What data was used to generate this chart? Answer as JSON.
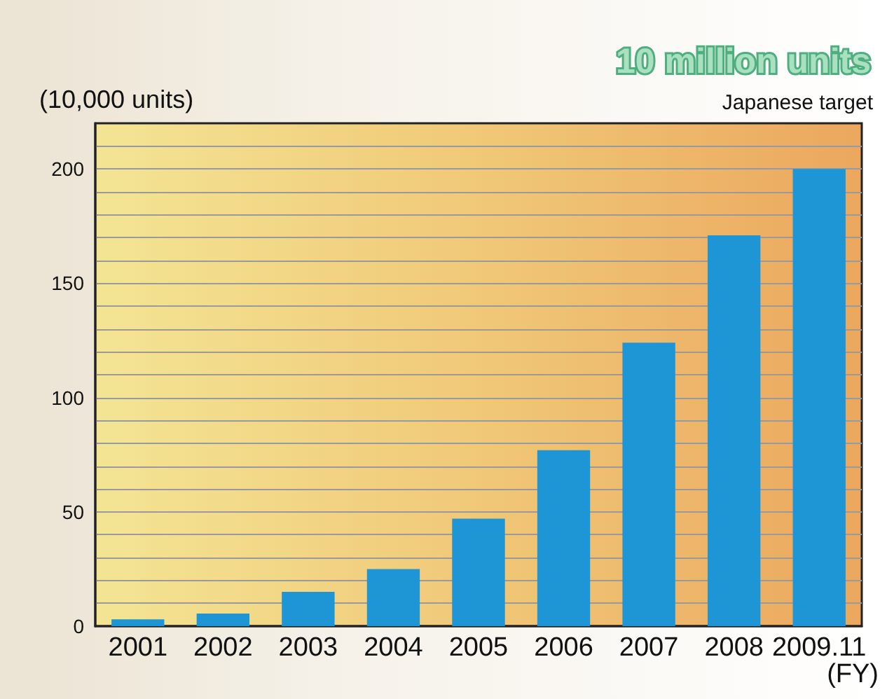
{
  "chart_data": {
    "type": "bar",
    "categories": [
      "2001",
      "2002",
      "2003",
      "2004",
      "2005",
      "2006",
      "2007",
      "2008",
      "2009.11"
    ],
    "values": [
      3,
      5.5,
      15,
      25,
      47,
      77,
      124,
      171,
      200
    ],
    "color": "#1e96d6",
    "ylabel": "(10,000 units)",
    "xlabel": "(FY)",
    "annotations": [
      "10 million units",
      "Japanese target"
    ],
    "ylim": [
      0,
      220
    ],
    "yticks": [
      0,
      {
        "value": 10,
        "label": null
      },
      {
        "value": 20,
        "label": null
      },
      {
        "value": 30,
        "label": null
      },
      {
        "value": 40,
        "label": null
      },
      50,
      {
        "value": 60,
        "label": null
      },
      {
        "value": 70,
        "label": null
      },
      {
        "value": 80,
        "label": null
      },
      {
        "value": 90,
        "label": null
      },
      100,
      {
        "value": 110,
        "label": null
      },
      {
        "value": 120,
        "label": null
      },
      {
        "value": 130,
        "label": null
      },
      {
        "value": 140,
        "label": null
      },
      150,
      {
        "value": 160,
        "label": null
      },
      {
        "value": 170,
        "label": null
      },
      {
        "value": 180,
        "label": null
      },
      {
        "value": 190,
        "label": null
      },
      200,
      {
        "value": 210,
        "label": null
      }
    ],
    "grid": "y"
  }
}
